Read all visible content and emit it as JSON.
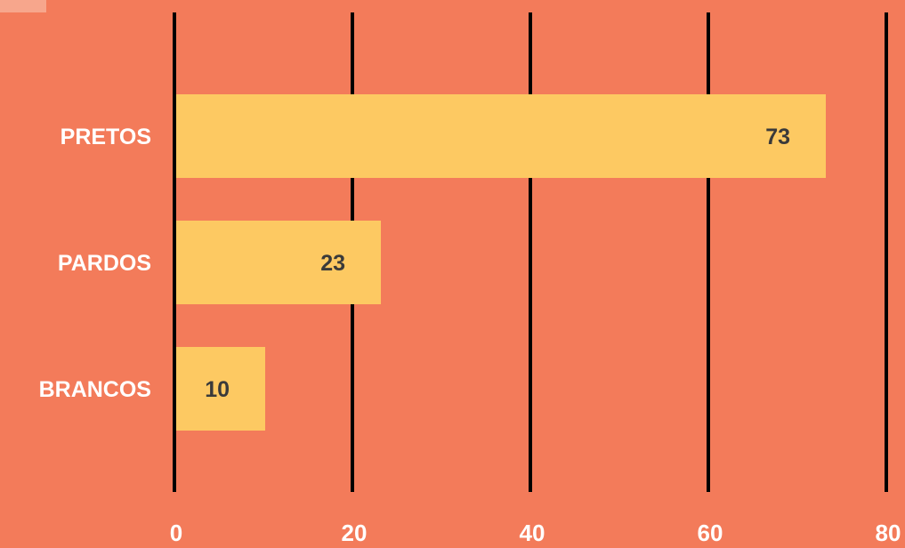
{
  "colors": {
    "background": "#F37B5A",
    "bar": "#FDC962",
    "gridline": "#000000",
    "text_light": "#FFFFFF",
    "text_dark": "#3A3A3A"
  },
  "chart_data": {
    "type": "bar",
    "orientation": "horizontal",
    "categories": [
      "PRETOS",
      "PARDOS",
      "BRANCOS"
    ],
    "values": [
      73,
      23,
      10
    ],
    "xlim": [
      0,
      80
    ],
    "xticks": [
      0,
      20,
      40,
      60,
      80
    ],
    "grid": true,
    "legend": "none",
    "data_labels": true
  }
}
